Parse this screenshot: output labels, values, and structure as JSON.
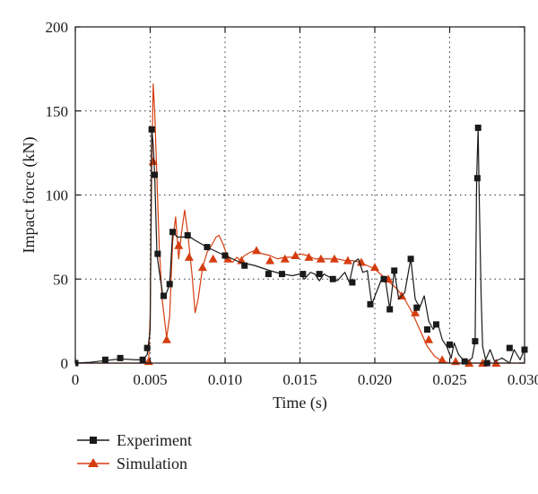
{
  "chart_data": {
    "type": "line",
    "xlabel": "Time (s)",
    "ylabel": "Impact force (kN)",
    "xlim": [
      0,
      0.03
    ],
    "ylim": [
      0,
      200
    ],
    "x_ticks": [
      0,
      0.005,
      0.01,
      0.015,
      0.02,
      0.025,
      0.03
    ],
    "x_tick_labels": [
      "0",
      "0.005",
      "0.010",
      "0.015",
      "0.020",
      "0.025",
      "0.030"
    ],
    "y_ticks": [
      0,
      50,
      100,
      150,
      200
    ],
    "y_tick_labels": [
      "0",
      "50",
      "100",
      "150",
      "200"
    ],
    "grid": "dotted",
    "legend_position": "bottom-left, outside plot",
    "series": [
      {
        "name": "Experiment",
        "color": "#1a1a1a",
        "marker": "square",
        "line": [
          [
            0,
            0
          ],
          [
            0.001,
            0.5
          ],
          [
            0.002,
            1.5
          ],
          [
            0.003,
            2.5
          ],
          [
            0.004,
            2
          ],
          [
            0.0045,
            2
          ],
          [
            0.0048,
            5
          ],
          [
            0.005,
            20
          ],
          [
            0.0051,
            140
          ],
          [
            0.0052,
            130
          ],
          [
            0.0053,
            112
          ],
          [
            0.00545,
            65
          ],
          [
            0.0056,
            55
          ],
          [
            0.00585,
            40
          ],
          [
            0.0061,
            42
          ],
          [
            0.0063,
            47
          ],
          [
            0.0065,
            78
          ],
          [
            0.0068,
            75
          ],
          [
            0.0072,
            75
          ],
          [
            0.0075,
            76
          ],
          [
            0.008,
            73
          ],
          [
            0.0088,
            69
          ],
          [
            0.0095,
            66
          ],
          [
            0.01,
            64
          ],
          [
            0.011,
            60
          ],
          [
            0.012,
            58
          ],
          [
            0.013,
            55
          ],
          [
            0.0138,
            53
          ],
          [
            0.0145,
            52
          ],
          [
            0.015,
            53
          ],
          [
            0.0153,
            50
          ],
          [
            0.0157,
            54
          ],
          [
            0.016,
            53
          ],
          [
            0.0163,
            49
          ],
          [
            0.0166,
            53
          ],
          [
            0.017,
            51
          ],
          [
            0.0175,
            49
          ],
          [
            0.018,
            54
          ],
          [
            0.0183,
            48
          ],
          [
            0.0186,
            60
          ],
          [
            0.0189,
            62
          ],
          [
            0.0192,
            54
          ],
          [
            0.0195,
            55
          ],
          [
            0.0198,
            35
          ],
          [
            0.0201,
            42
          ],
          [
            0.0205,
            51
          ],
          [
            0.0207,
            50
          ],
          [
            0.021,
            32
          ],
          [
            0.0213,
            55
          ],
          [
            0.0216,
            38
          ],
          [
            0.022,
            42
          ],
          [
            0.0224,
            62
          ],
          [
            0.0227,
            38
          ],
          [
            0.023,
            33
          ],
          [
            0.0233,
            40
          ],
          [
            0.0236,
            25
          ],
          [
            0.0239,
            20
          ],
          [
            0.0242,
            24
          ],
          [
            0.0245,
            14
          ],
          [
            0.0248,
            10
          ],
          [
            0.0251,
            3
          ],
          [
            0.0253,
            12
          ],
          [
            0.0256,
            5
          ],
          [
            0.0259,
            2
          ],
          [
            0.0262,
            1
          ],
          [
            0.0265,
            3
          ],
          [
            0.0267,
            13
          ],
          [
            0.0268,
            110
          ],
          [
            0.0269,
            140
          ],
          [
            0.02695,
            110
          ],
          [
            0.0271,
            40
          ],
          [
            0.0272,
            10
          ],
          [
            0.0274,
            2
          ],
          [
            0.0277,
            8
          ],
          [
            0.028,
            1
          ],
          [
            0.0285,
            3
          ],
          [
            0.029,
            0
          ],
          [
            0.0293,
            8
          ],
          [
            0.0297,
            2
          ],
          [
            0.03,
            8
          ]
        ],
        "markers": [
          [
            0,
            0
          ],
          [
            0.002,
            2
          ],
          [
            0.003,
            3
          ],
          [
            0.0045,
            2
          ],
          [
            0.0048,
            9
          ],
          [
            0.0051,
            139
          ],
          [
            0.0053,
            112
          ],
          [
            0.0055,
            65
          ],
          [
            0.0059,
            40
          ],
          [
            0.0063,
            47
          ],
          [
            0.0065,
            78
          ],
          [
            0.0075,
            76
          ],
          [
            0.0088,
            69
          ],
          [
            0.01,
            64
          ],
          [
            0.0113,
            58
          ],
          [
            0.0129,
            53
          ],
          [
            0.0138,
            53
          ],
          [
            0.0152,
            53
          ],
          [
            0.0163,
            53
          ],
          [
            0.0172,
            50
          ],
          [
            0.0185,
            48
          ],
          [
            0.0197,
            35
          ],
          [
            0.0206,
            50
          ],
          [
            0.021,
            32
          ],
          [
            0.0213,
            55
          ],
          [
            0.0224,
            62
          ],
          [
            0.0228,
            33
          ],
          [
            0.0235,
            20
          ],
          [
            0.0241,
            23
          ],
          [
            0.025,
            11
          ],
          [
            0.026,
            1
          ],
          [
            0.0269,
            140
          ],
          [
            0.02685,
            110
          ],
          [
            0.0267,
            13
          ],
          [
            0.0275,
            0
          ],
          [
            0.029,
            9
          ],
          [
            0.03,
            8
          ]
        ]
      },
      {
        "name": "Simulation",
        "color": "#d53d10",
        "marker": "triangle",
        "line": [
          [
            0,
            0
          ],
          [
            0.004,
            0
          ],
          [
            0.0047,
            0
          ],
          [
            0.0049,
            2
          ],
          [
            0.005,
            30
          ],
          [
            0.0051,
            115
          ],
          [
            0.0052,
            166
          ],
          [
            0.0053,
            150
          ],
          [
            0.00545,
            110
          ],
          [
            0.0056,
            70
          ],
          [
            0.0058,
            38
          ],
          [
            0.0061,
            15
          ],
          [
            0.0063,
            28
          ],
          [
            0.0065,
            72
          ],
          [
            0.0067,
            87
          ],
          [
            0.0069,
            62
          ],
          [
            0.0071,
            78
          ],
          [
            0.0073,
            91
          ],
          [
            0.0075,
            78
          ],
          [
            0.0078,
            52
          ],
          [
            0.008,
            30
          ],
          [
            0.0082,
            38
          ],
          [
            0.0085,
            57
          ],
          [
            0.0088,
            66
          ],
          [
            0.0091,
            70
          ],
          [
            0.0094,
            75
          ],
          [
            0.0096,
            76
          ],
          [
            0.0099,
            70
          ],
          [
            0.0102,
            62
          ],
          [
            0.0105,
            60
          ],
          [
            0.0108,
            63
          ],
          [
            0.011,
            61
          ],
          [
            0.0113,
            64
          ],
          [
            0.0117,
            66
          ],
          [
            0.012,
            67
          ],
          [
            0.0125,
            65
          ],
          [
            0.013,
            64
          ],
          [
            0.0135,
            62
          ],
          [
            0.014,
            63
          ],
          [
            0.0145,
            63
          ],
          [
            0.015,
            65
          ],
          [
            0.0155,
            64
          ],
          [
            0.016,
            62
          ],
          [
            0.0165,
            62
          ],
          [
            0.017,
            62
          ],
          [
            0.0175,
            62
          ],
          [
            0.018,
            61
          ],
          [
            0.0185,
            61
          ],
          [
            0.019,
            60
          ],
          [
            0.0195,
            58
          ],
          [
            0.02,
            56
          ],
          [
            0.0205,
            52
          ],
          [
            0.021,
            48
          ],
          [
            0.0215,
            44
          ],
          [
            0.022,
            38
          ],
          [
            0.0225,
            30
          ],
          [
            0.023,
            20
          ],
          [
            0.0235,
            10
          ],
          [
            0.024,
            4
          ],
          [
            0.0245,
            1
          ],
          [
            0.025,
            0
          ],
          [
            0.026,
            0
          ],
          [
            0.027,
            0
          ],
          [
            0.0275,
            0
          ],
          [
            0.028,
            0
          ],
          [
            0.029,
            0
          ],
          [
            0.03,
            0
          ]
        ],
        "markers": [
          [
            0.0049,
            1
          ],
          [
            0.0052,
            120
          ],
          [
            0.0061,
            14
          ],
          [
            0.0069,
            70
          ],
          [
            0.0076,
            63
          ],
          [
            0.0085,
            57
          ],
          [
            0.0092,
            62
          ],
          [
            0.0102,
            62
          ],
          [
            0.0111,
            61
          ],
          [
            0.0121,
            67
          ],
          [
            0.013,
            61
          ],
          [
            0.014,
            62
          ],
          [
            0.0147,
            64
          ],
          [
            0.0156,
            63
          ],
          [
            0.0164,
            62
          ],
          [
            0.0173,
            62
          ],
          [
            0.0182,
            61
          ],
          [
            0.0191,
            60
          ],
          [
            0.02,
            57
          ],
          [
            0.0209,
            50
          ],
          [
            0.0218,
            40
          ],
          [
            0.0227,
            30
          ],
          [
            0.0236,
            14
          ],
          [
            0.0245,
            2
          ],
          [
            0.0254,
            1
          ],
          [
            0.0263,
            0
          ],
          [
            0.0272,
            0
          ],
          [
            0.0281,
            0
          ]
        ]
      }
    ]
  }
}
